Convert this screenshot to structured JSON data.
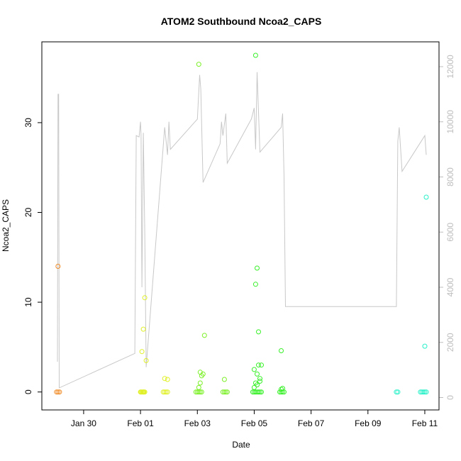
{
  "chart_data": {
    "type": "scatter",
    "title": "ATOM2 Southbound Ncoa2_CAPS",
    "xlabel": "Date",
    "ylabel": "Ncoa2_CAPS",
    "x_ticks": [
      "Jan 30",
      "Feb 01",
      "Feb 03",
      "Feb 05",
      "Feb 07",
      "Feb 09",
      "Feb 11"
    ],
    "x_tick_days": [
      0,
      2,
      4,
      6,
      8,
      10,
      12
    ],
    "xlim_days": [
      -1.47,
      12.5
    ],
    "ylim": [
      -2,
      39
    ],
    "y_ticks": [
      0,
      10,
      20,
      30
    ],
    "y2lim": [
      -450,
      12900
    ],
    "y2_ticks": [
      0,
      2000,
      4000,
      6000,
      8000,
      10000,
      12000
    ],
    "secondary_line_color": "#c8c8c8",
    "secondary_line": [
      [
        -0.92,
        1300
      ],
      [
        -0.9,
        11000
      ],
      [
        -0.88,
        11000
      ],
      [
        -0.86,
        350
      ],
      [
        1.8,
        1600
      ],
      [
        1.85,
        9500
      ],
      [
        1.95,
        9450
      ],
      [
        2.0,
        10000
      ],
      [
        2.02,
        9500
      ],
      [
        2.05,
        4000
      ],
      [
        2.1,
        9600
      ],
      [
        2.15,
        6000
      ],
      [
        2.2,
        1100
      ],
      [
        2.85,
        9800
      ],
      [
        2.95,
        8800
      ],
      [
        3.0,
        10000
      ],
      [
        3.05,
        9000
      ],
      [
        4.0,
        10100
      ],
      [
        4.08,
        11700
      ],
      [
        4.12,
        11200
      ],
      [
        4.2,
        7800
      ],
      [
        4.8,
        9200
      ],
      [
        4.85,
        10000
      ],
      [
        4.9,
        9500
      ],
      [
        5.0,
        10300
      ],
      [
        5.05,
        8500
      ],
      [
        5.9,
        10100
      ],
      [
        6.0,
        10500
      ],
      [
        6.05,
        9000
      ],
      [
        6.1,
        11800
      ],
      [
        6.2,
        8900
      ],
      [
        6.95,
        9800
      ],
      [
        7.0,
        10300
      ],
      [
        7.05,
        8000
      ],
      [
        7.1,
        3300
      ],
      [
        11.0,
        3300
      ],
      [
        11.05,
        9300
      ],
      [
        11.1,
        9800
      ],
      [
        11.2,
        8200
      ],
      [
        12.0,
        9500
      ],
      [
        12.05,
        8800
      ]
    ],
    "series": [
      {
        "color": "#f08c28",
        "points": [
          [
            -0.95,
            0
          ],
          [
            -0.9,
            0
          ],
          [
            -0.85,
            0
          ],
          [
            -0.9,
            14.0
          ]
        ]
      },
      {
        "color": "#e0f028",
        "points": [
          [
            2.0,
            0
          ],
          [
            2.02,
            0
          ],
          [
            2.05,
            0
          ],
          [
            2.08,
            0
          ],
          [
            2.1,
            0
          ],
          [
            2.12,
            0
          ],
          [
            2.15,
            0
          ],
          [
            2.05,
            4.5
          ],
          [
            2.1,
            7.0
          ],
          [
            2.15,
            10.5
          ],
          [
            2.2,
            3.5
          ],
          [
            2.8,
            0
          ],
          [
            2.85,
            0
          ],
          [
            2.9,
            0
          ],
          [
            2.95,
            0
          ],
          [
            2.85,
            1.5
          ],
          [
            2.95,
            1.4
          ]
        ]
      },
      {
        "color": "#7cf028",
        "points": [
          [
            3.95,
            0
          ],
          [
            4.0,
            0
          ],
          [
            4.05,
            0
          ],
          [
            4.1,
            0
          ],
          [
            4.15,
            0
          ],
          [
            4.05,
            0.5
          ],
          [
            4.1,
            1.0
          ],
          [
            4.15,
            1.8
          ],
          [
            4.1,
            2.2
          ],
          [
            4.2,
            2.0
          ],
          [
            4.05,
            36.5
          ],
          [
            4.25,
            6.3
          ],
          [
            4.9,
            0
          ],
          [
            4.95,
            0
          ],
          [
            5.0,
            0
          ],
          [
            5.05,
            0
          ],
          [
            4.95,
            1.4
          ]
        ]
      },
      {
        "color": "#38f028",
        "points": [
          [
            5.95,
            0
          ],
          [
            6.0,
            0
          ],
          [
            6.05,
            0
          ],
          [
            6.1,
            0
          ],
          [
            6.15,
            0
          ],
          [
            6.2,
            0
          ],
          [
            6.25,
            0
          ],
          [
            6.0,
            0.5
          ],
          [
            6.05,
            1.0
          ],
          [
            6.1,
            2.0
          ],
          [
            6.15,
            3.0
          ],
          [
            6.0,
            2.5
          ],
          [
            6.2,
            1.5
          ],
          [
            6.1,
            0.8
          ],
          [
            6.05,
            12.0
          ],
          [
            6.1,
            13.8
          ],
          [
            6.15,
            6.7
          ],
          [
            6.25,
            3.0
          ],
          [
            6.2,
            1.2
          ],
          [
            6.05,
            37.5
          ],
          [
            6.9,
            0
          ],
          [
            6.95,
            0
          ],
          [
            7.0,
            0
          ],
          [
            7.05,
            0
          ],
          [
            6.95,
            0.3
          ],
          [
            7.0,
            0.4
          ],
          [
            6.95,
            4.6
          ]
        ]
      },
      {
        "color": "#28f0c8",
        "points": [
          [
            11.0,
            0
          ],
          [
            11.05,
            0
          ],
          [
            11.85,
            0
          ],
          [
            11.9,
            0
          ],
          [
            11.95,
            0
          ],
          [
            12.0,
            0
          ],
          [
            12.05,
            0
          ],
          [
            12.0,
            5.1
          ],
          [
            12.05,
            21.7
          ]
        ]
      }
    ]
  }
}
